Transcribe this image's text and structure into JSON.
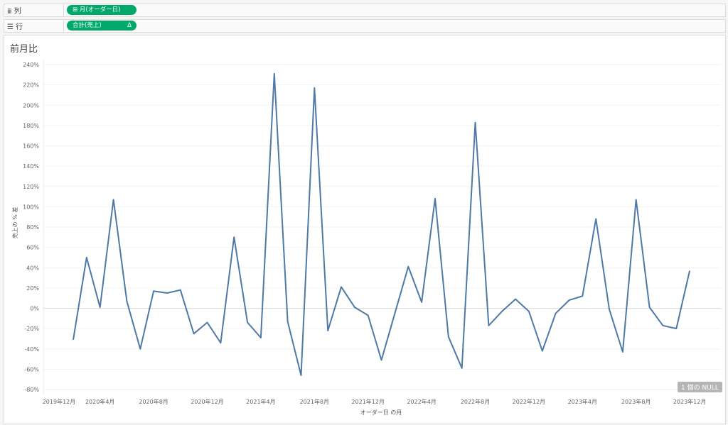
{
  "shelves": {
    "columns": {
      "label": "列",
      "pill": "⊞ 月(オーダー日)"
    },
    "rows": {
      "label": "行",
      "pill": "合計(売上)",
      "delta": "Δ"
    }
  },
  "null_badge": "1 個の NULL",
  "chart_data": {
    "type": "line",
    "title": "前月比",
    "xlabel": "オーダー日 の月",
    "ylabel": "売上の % 差",
    "ylim": [
      -80,
      240
    ],
    "yticks": [
      "240%",
      "220%",
      "200%",
      "180%",
      "160%",
      "140%",
      "120%",
      "100%",
      "80%",
      "60%",
      "40%",
      "20%",
      "0%",
      "-20%",
      "-40%",
      "-60%",
      "-80%"
    ],
    "xticks": [
      "2019年12月",
      "2020年4月",
      "2020年8月",
      "2020年12月",
      "2021年4月",
      "2021年8月",
      "2021年12月",
      "2022年4月",
      "2022年8月",
      "2022年12月",
      "2023年4月",
      "2023年8月",
      "2023年12月"
    ],
    "x_range": [
      "2020-02",
      "2023-12"
    ],
    "color": "#4e79a7",
    "grid": true,
    "values": [
      -31,
      50,
      1,
      107,
      7,
      -40,
      17,
      15,
      18,
      -25,
      -14,
      -34,
      70,
      -14,
      -29,
      231,
      -13,
      -66,
      217,
      -22,
      21,
      1,
      -7,
      -51,
      -5,
      41,
      6,
      108,
      -28,
      -59,
      183,
      -17,
      -3,
      9,
      -3,
      -42,
      -5,
      8,
      12,
      88,
      -1,
      -43,
      107,
      1,
      -17,
      -20,
      37
    ]
  }
}
